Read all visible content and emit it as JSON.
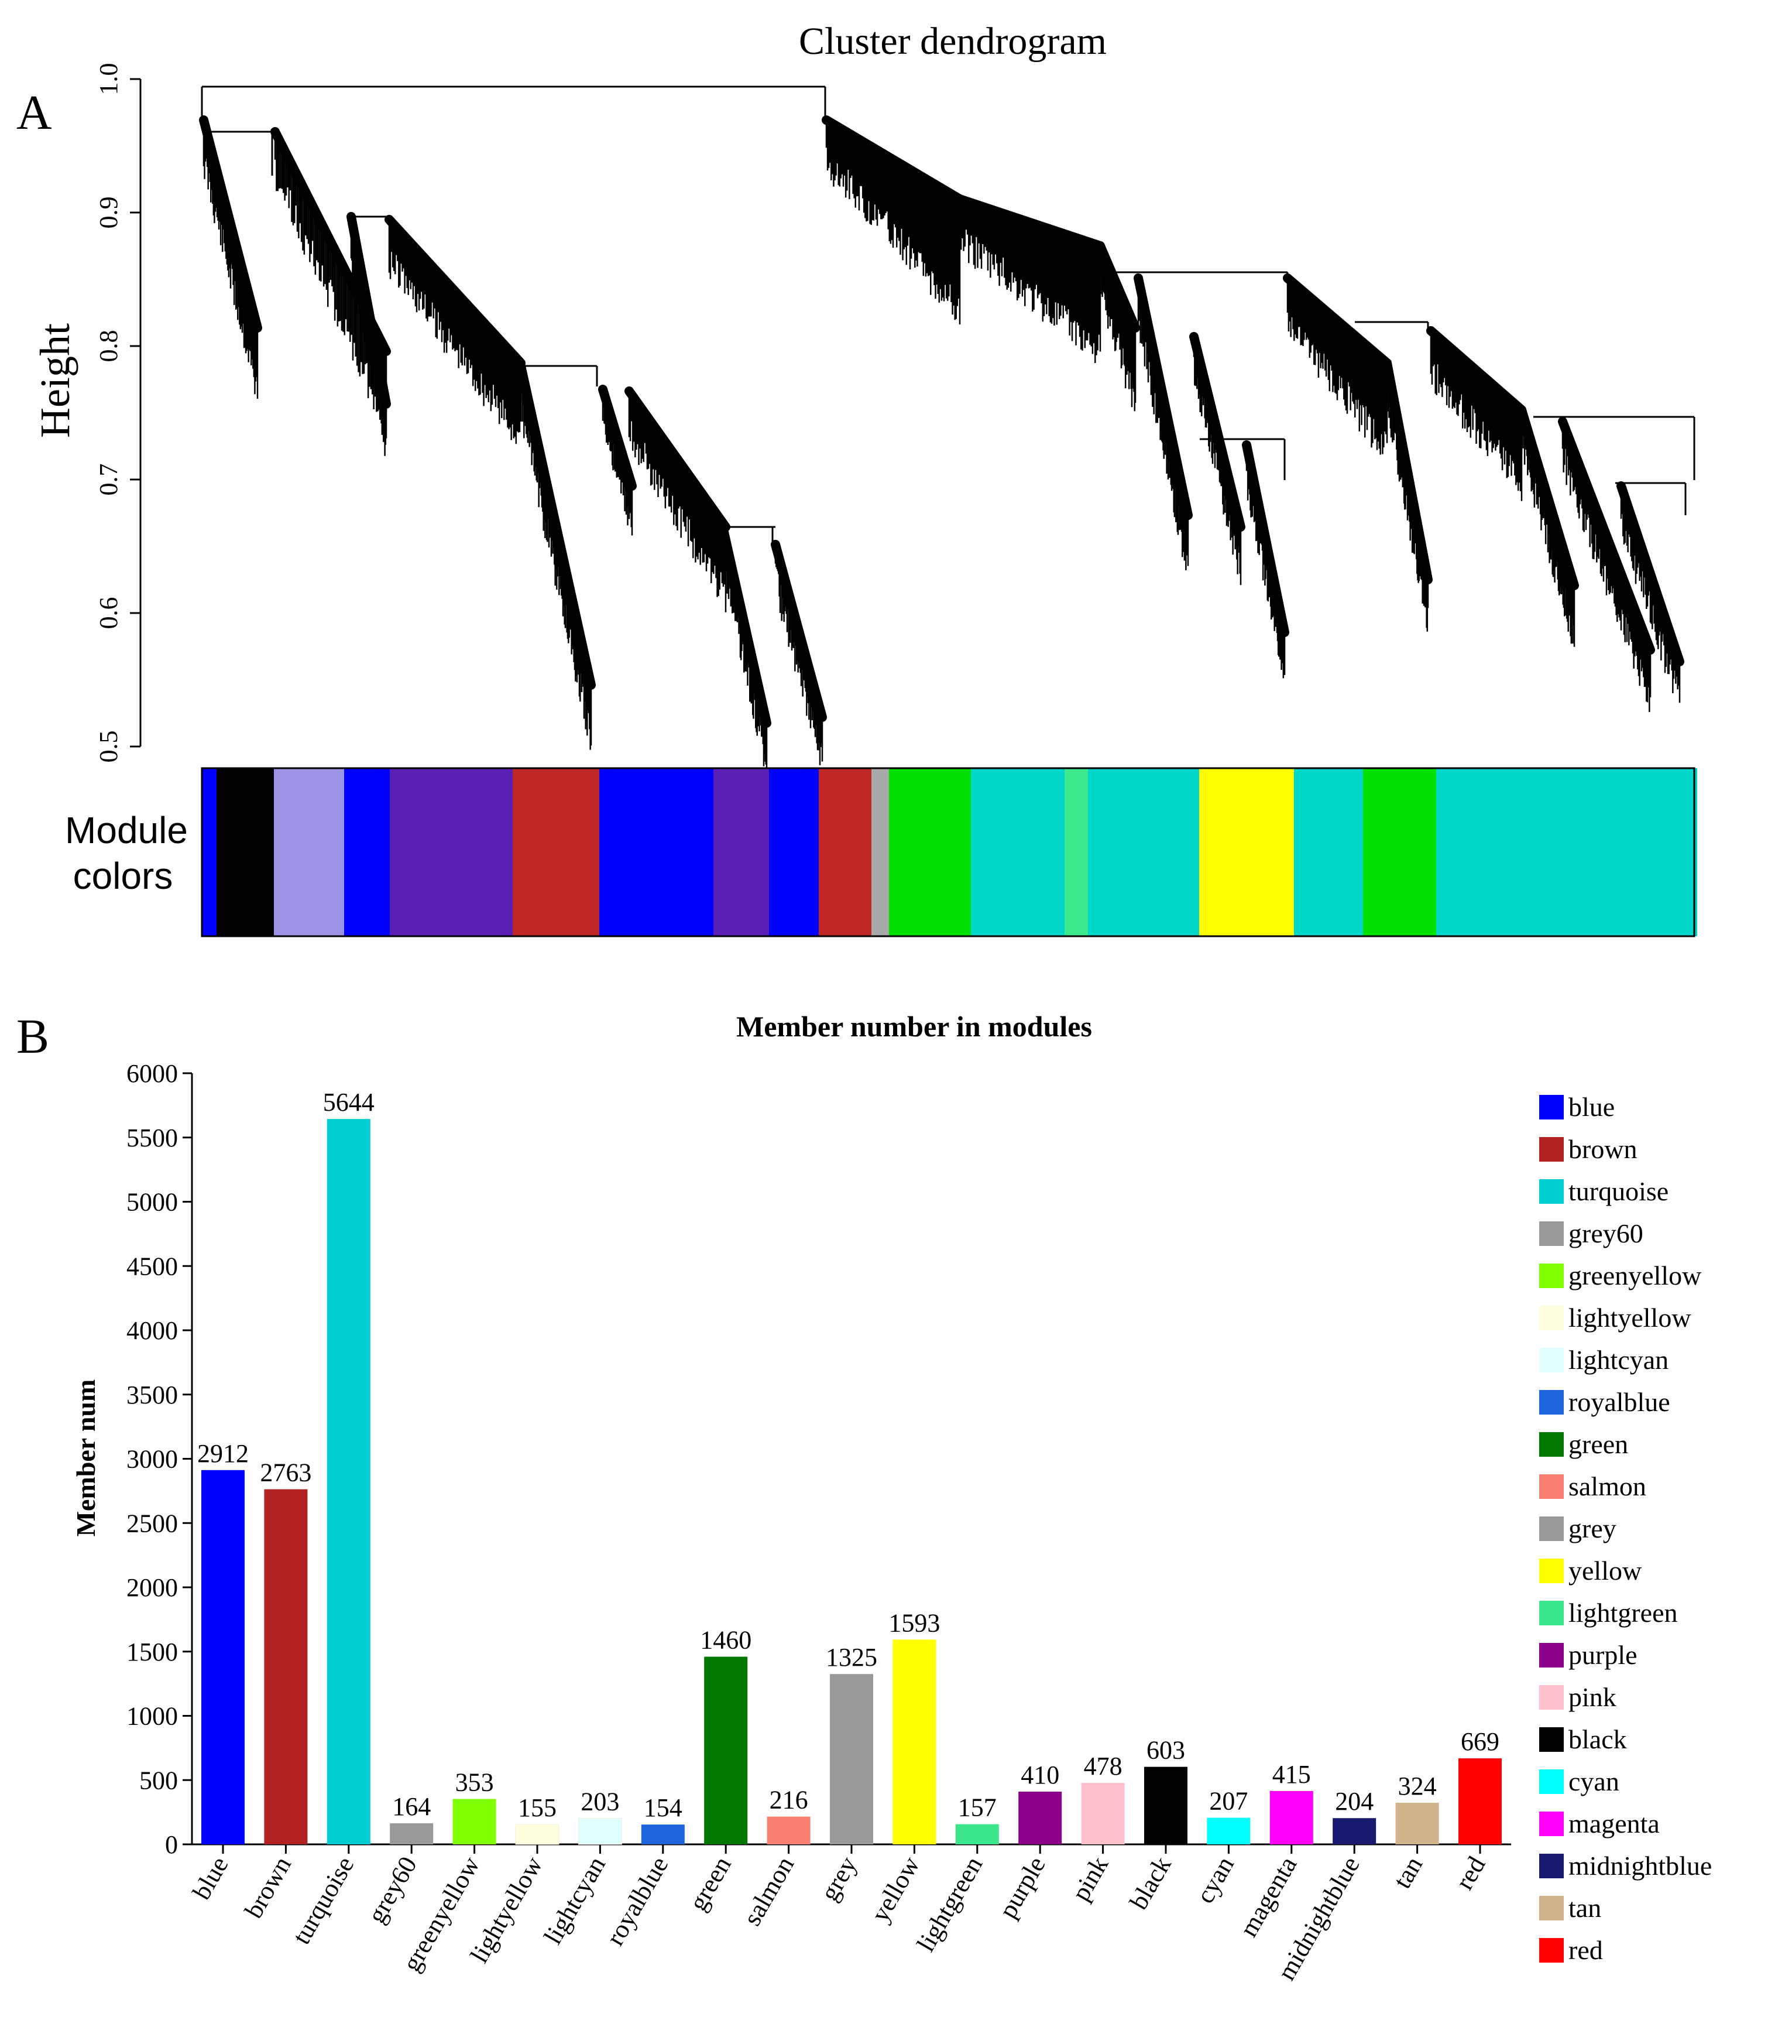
{
  "panel_a": {
    "letter": "A",
    "title": "Cluster dendrogram",
    "ylabel": "Height",
    "yticks": [
      "0.5",
      "0.6",
      "0.7",
      "0.8",
      "0.9",
      "1.0"
    ],
    "ylim": [
      0.5,
      1.0
    ],
    "module_colors_label_line1": "Module",
    "module_colors_label_line2": "colors"
  },
  "panel_b": {
    "letter": "B"
  },
  "chart_data": [
    {
      "type": "dendrogram",
      "title": "Cluster dendrogram",
      "ylabel": "Height",
      "ylim": [
        0.5,
        1.0
      ],
      "root_merge_height": 0.99,
      "module_color_strip": [
        "blue",
        "black",
        "lightsteelblue",
        "blue",
        "purple",
        "brown",
        "blue",
        "purple",
        "blue",
        "brown",
        "grey",
        "green",
        "turquoise",
        "greenyellow",
        "turquoise",
        "yellow",
        "turquoise",
        "green",
        "turquoise"
      ]
    },
    {
      "type": "bar",
      "title": "Member number in modules",
      "xlabel": "",
      "ylabel": "Member num",
      "ylim": [
        0,
        6000
      ],
      "yticks": [
        "0",
        "500",
        "1000",
        "1500",
        "2000",
        "2500",
        "3000",
        "3500",
        "4000",
        "4500",
        "5000",
        "5500",
        "6000"
      ],
      "grid": false,
      "legend_position": "right",
      "categories": [
        "blue",
        "brown",
        "turquoise",
        "grey60",
        "greenyellow",
        "lightyellow",
        "lightcyan",
        "royalblue",
        "green",
        "salmon",
        "grey",
        "yellow",
        "lightgreen",
        "purple",
        "pink",
        "black",
        "cyan",
        "magenta",
        "midnightblue",
        "tan",
        "red"
      ],
      "values": [
        2912,
        2763,
        5644,
        164,
        353,
        155,
        203,
        154,
        1460,
        216,
        1325,
        1593,
        157,
        410,
        478,
        603,
        207,
        415,
        204,
        324,
        669
      ],
      "colors": [
        "#0000ff",
        "#b22222",
        "#00ced1",
        "#999999",
        "#7fff00",
        "#ffffe0",
        "#e0ffff",
        "#1e64dc",
        "#007800",
        "#fa8072",
        "#999999",
        "#ffff00",
        "#3ce68c",
        "#8b008b",
        "#ffc0cb",
        "#000000",
        "#00ffff",
        "#ff00ff",
        "#191970",
        "#d2b48c",
        "#ff0000"
      ]
    }
  ]
}
